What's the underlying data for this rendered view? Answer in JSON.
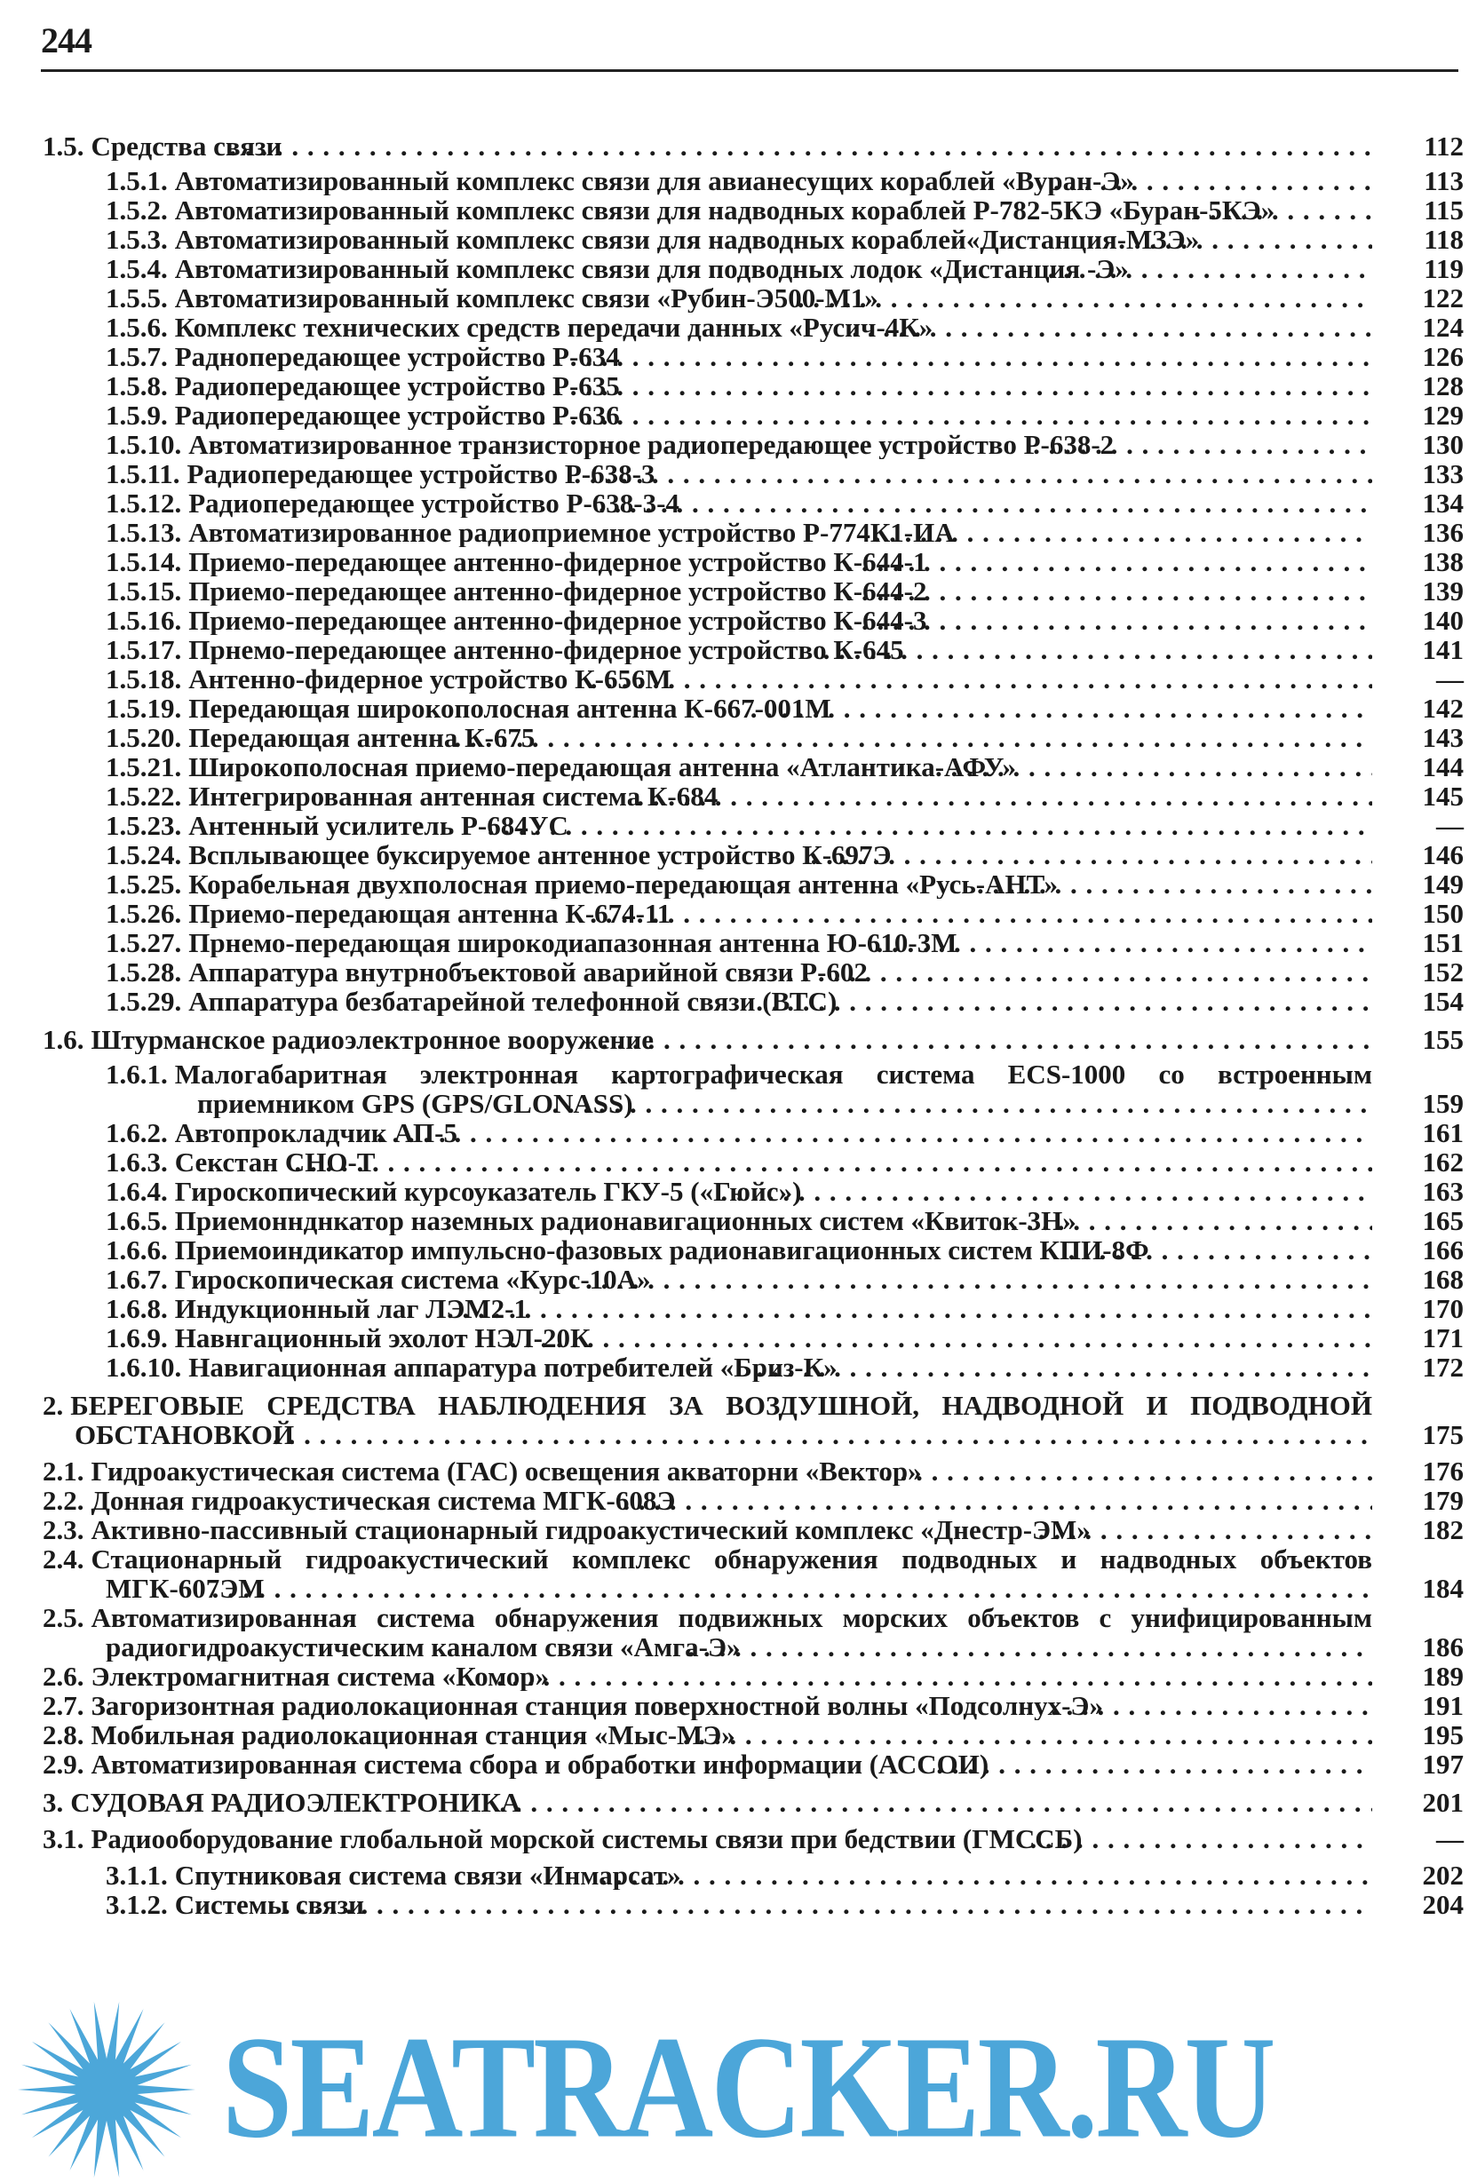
{
  "page_number": "244",
  "watermark": {
    "text": "SEATRACKER.RU",
    "color": "#3d9fd6"
  },
  "groups": [
    {
      "head": {
        "level": 1,
        "num": "1.5.",
        "title": "Средства связи",
        "page": "112"
      },
      "items": [
        {
          "level": 2,
          "num": "1.5.1.",
          "title": "Автоматизированный комплекс связи для авианесущих кораблей «Вуран-Э»",
          "page": "113"
        },
        {
          "level": 2,
          "num": "1.5.2.",
          "title": "Автоматизированный комплекс связи для надводных кораблей Р-782-5КЭ «Буран-5КЭ»",
          "page": "115"
        },
        {
          "level": 2,
          "num": "1.5.3.",
          "title": "Автоматизированный комплекс связи для надводных кораблей«Дистанция-МЗЭ»",
          "page": "118"
        },
        {
          "level": 2,
          "num": "1.5.4.",
          "title": "Автоматизированный комплекс связи для подводных лодок «Дистанция -Э»",
          "page": "119"
        },
        {
          "level": 2,
          "num": "1.5.5.",
          "title": "Автоматизированный комплекс связи «Рубин-Э500-М1»",
          "page": "122"
        },
        {
          "level": 2,
          "num": "1.5.6.",
          "title": "Комплекс технических средств передачи данных «Русич-4К»",
          "page": "124"
        },
        {
          "level": 2,
          "num": "1.5.7.",
          "title": "Раднопередающее устройство Р-634",
          "page": "126"
        },
        {
          "level": 2,
          "num": "1.5.8.",
          "title": "Радиопередающее устройство Р-635",
          "page": "128"
        },
        {
          "level": 2,
          "num": "1.5.9.",
          "title": "Радиопередающее устройство Р-636",
          "page": "129"
        },
        {
          "level": 2,
          "num": "1.5.10.",
          "title": "Автоматизированное транзисторное радиопередающее устройство Р-638-2",
          "page": "130"
        },
        {
          "level": 2,
          "num": "1.5.11.",
          "title": "Радиопередающее устройство Р-638-3",
          "page": "133"
        },
        {
          "level": 2,
          "num": "1.5.12.",
          "title": "Радиопередающее устройство Р-638-3-4",
          "page": "134"
        },
        {
          "level": 2,
          "num": "1.5.13.",
          "title": "Автоматизированное радиоприемное устройство Р-774К1-ИА",
          "page": "136"
        },
        {
          "level": 2,
          "num": "1.5.14.",
          "title": "Приемо-передающее антенно-фидерное устройство К-644-1",
          "page": "138"
        },
        {
          "level": 2,
          "num": "1.5.15.",
          "title": "Приемо-передающее антенно-фидерное устройство К-644-2",
          "page": "139"
        },
        {
          "level": 2,
          "num": "1.5.16.",
          "title": "Приемо-передающее антенно-фидерное устройство К-644-3",
          "page": "140"
        },
        {
          "level": 2,
          "num": "1.5.17.",
          "title": "Прнемо-передающее антенно-фидерное устройство К-645",
          "page": "141"
        },
        {
          "level": 2,
          "num": "1.5.18.",
          "title": "Антенно-фидерное устройство К-656М",
          "page": "—"
        },
        {
          "level": 2,
          "num": "1.5.19.",
          "title": "Передающая широкополосная антенна К-667-001М",
          "page": "142"
        },
        {
          "level": 2,
          "num": "1.5.20.",
          "title": "Передающая антенна К-675",
          "page": "143"
        },
        {
          "level": 2,
          "num": "1.5.21.",
          "title": "Широкополосная приемо-передающая антенна «Атлантика-АФУ»",
          "page": "144"
        },
        {
          "level": 2,
          "num": "1.5.22.",
          "title": "Интегрированная антенная система К-684",
          "page": "145"
        },
        {
          "level": 2,
          "num": "1.5.23.",
          "title": "Антенный усилитель Р-684УС",
          "page": "—"
        },
        {
          "level": 2,
          "num": "1.5.24.",
          "title": "Всплывающее буксируемое антенное устройство К-697Э",
          "page": "146"
        },
        {
          "level": 2,
          "num": "1.5.25.",
          "title": "Корабельная двухполосная приемо-передающая антенна «Русь-АНТ»",
          "page": "149"
        },
        {
          "level": 2,
          "num": "1.5.26.",
          "title": "Приемо-передающая антенна К-674-11",
          "page": "150"
        },
        {
          "level": 2,
          "num": "1.5.27.",
          "title": "Прнемо-передающая широкодиапазонная антенна Ю-610-3М",
          "page": "151"
        },
        {
          "level": 2,
          "num": "1.5.28.",
          "title": "Аппаратура внутрнобъектовой аварийной связи Р-602",
          "page": "152"
        },
        {
          "level": 2,
          "num": "1.5.29.",
          "title": "Аппаратура безбатарейной телефонной связи (ВТС)",
          "page": "154"
        }
      ]
    },
    {
      "head": {
        "level": 1,
        "num": "1.6.",
        "title": "Штурманское радиоэлектронное вооружение",
        "page": "155"
      },
      "items": [
        {
          "level": 2,
          "num": "1.6.1.",
          "title": "Малогабаритная электронная картографическая система ECS-1000 со встроенным приемником GPS (GPS/GLONASS)",
          "page": "159"
        },
        {
          "level": 2,
          "num": "1.6.2.",
          "title": "Автопрокладчик АП-5",
          "page": "161"
        },
        {
          "level": 2,
          "num": "1.6.3.",
          "title": "Секстан СНО-Т",
          "page": "162"
        },
        {
          "level": 2,
          "num": "1.6.4.",
          "title": "Гироскопический курсоуказатель ГКУ-5 («Гюйс»)",
          "page": "163"
        },
        {
          "level": 2,
          "num": "1.6.5.",
          "title": "Приемоннднкатор наземных радионавигационных систем «Квиток-3Н»",
          "page": "165"
        },
        {
          "level": 2,
          "num": "1.6.6.",
          "title": "Приемоиндикатор импульсно-фазовых радионавигационных систем КПИ-8Ф",
          "page": "166"
        },
        {
          "level": 2,
          "num": "1.6.7.",
          "title": "Гироскопическая система «Курс-10А»",
          "page": "168"
        },
        {
          "level": 2,
          "num": "1.6.8.",
          "title": "Индукционный лаг ЛЭМ2-1",
          "page": "170"
        },
        {
          "level": 2,
          "num": "1.6.9.",
          "title": "Навнгационный эхолот НЭЛ-20К",
          "page": "171"
        },
        {
          "level": 2,
          "num": "1.6.10.",
          "title": "Навигационная аппаратура потребителей «Бриз-К»",
          "page": "172"
        }
      ]
    },
    {
      "head": {
        "level": 0,
        "num": "2.",
        "title": "БЕРЕГОВЫЕ СРЕДСТВА НАБЛЮДЕНИЯ ЗА ВОЗДУШНОЙ, НАДВОДНОЙ И ПОДВОДНОЙ ОБСТАНОВКОЙ",
        "page": "175"
      },
      "items": [
        {
          "level": 1,
          "num": "2.1.",
          "title": "Гидроакустическая система (ГАС) освещения акваторни «Вектор»",
          "page": "176"
        },
        {
          "level": 1,
          "num": "2.2.",
          "title": "Донная гидроакустическая система МГК-608Э",
          "page": "179"
        },
        {
          "level": 1,
          "num": "2.3.",
          "title": "Активно-пассивный стационарный гидроакустический комплекс «Днестр-ЭМ»",
          "page": "182"
        },
        {
          "level": 1,
          "num": "2.4.",
          "title": "Стационарный гидроакустический комплекс обнаружения подводных и надводных объектов МГК-607ЭМ",
          "page": "184"
        },
        {
          "level": 1,
          "num": "2.5.",
          "title": "Автоматизированная система обнаружения подвижных морских объектов с унифицированным радиогидроакустическим каналом связи «Амга-Э»",
          "page": "186"
        },
        {
          "level": 1,
          "num": "2.6.",
          "title": "Электромагнитная система «Комор»",
          "page": "189"
        },
        {
          "level": 1,
          "num": "2.7.",
          "title": "Загоризонтная радиолокационная станция поверхностной волны «Подсолнух-Э»",
          "page": "191"
        },
        {
          "level": 1,
          "num": "2.8.",
          "title": "Мобильная радиолокационная станция «Мыс-МЭ»",
          "page": "195"
        },
        {
          "level": 1,
          "num": "2.9.",
          "title": "Автоматизированная система сбора и обработки информации (АССОИ)",
          "page": "197"
        }
      ]
    },
    {
      "head": {
        "level": 0,
        "num": "3.",
        "title": "СУДОВАЯ РАДИОЭЛЕКТРОНИКА",
        "page": "201"
      },
      "items": [
        {
          "level": 1,
          "num": "3.1.",
          "title": "Радиооборудование глобальной морской системы связи при бедствии (ГМССБ)",
          "page": "—"
        },
        {
          "level": 2,
          "num": "3.1.1.",
          "title": "Спутниковая система связи «Инмарсат»",
          "page": "202"
        },
        {
          "level": 2,
          "num": "3.1.2.",
          "title": "Системы связи",
          "page": "204"
        }
      ]
    }
  ]
}
